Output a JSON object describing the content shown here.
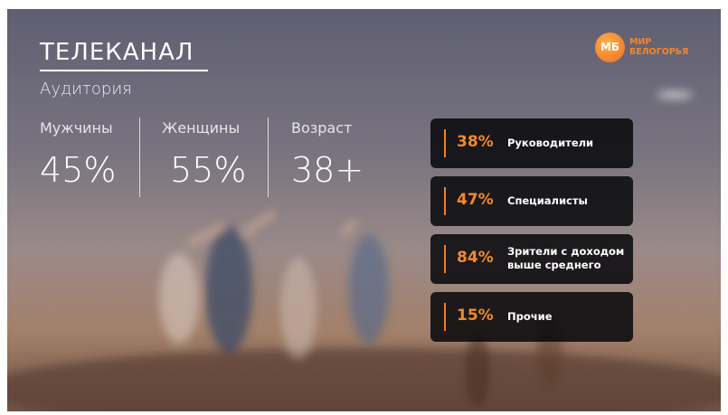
{
  "header": {
    "title": "ТЕЛЕКАНАЛ",
    "subtitle": "Аудитория"
  },
  "stats": [
    {
      "label": "Мужчины",
      "value": "45%"
    },
    {
      "label": "Женщины",
      "value": "55%"
    },
    {
      "label": "Возраст",
      "value": "38+"
    }
  ],
  "segments": [
    {
      "value": "38%",
      "label": [
        "Руководители"
      ]
    },
    {
      "value": "47%",
      "label": [
        "Специалисты"
      ]
    },
    {
      "value": "84%",
      "label": [
        "Зрители с доходом",
        "выше среднего"
      ]
    },
    {
      "value": "15%",
      "label": [
        "Прочие"
      ]
    }
  ],
  "logo": {
    "badge": "МБ",
    "lines": [
      "МИР",
      "БЕЛОГОРЬЯ"
    ]
  }
}
